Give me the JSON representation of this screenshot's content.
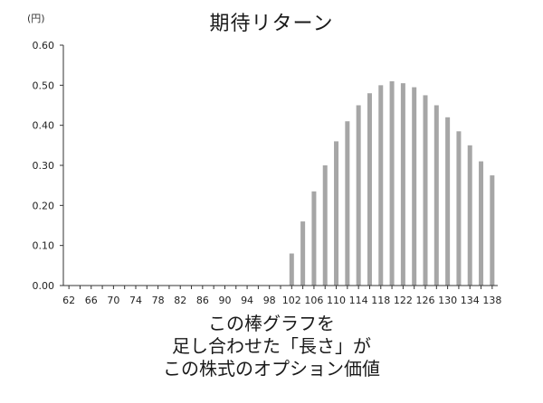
{
  "chart_data": {
    "type": "bar",
    "title": "期待リターン",
    "ylabel": "(円)",
    "xlabel": "",
    "ylim": [
      0,
      0.6
    ],
    "yticks": [
      "0.00",
      "0.10",
      "0.20",
      "0.30",
      "0.40",
      "0.50",
      "0.60"
    ],
    "x_tick_labels": [
      "62",
      "66",
      "70",
      "74",
      "78",
      "82",
      "86",
      "90",
      "94",
      "98",
      "102",
      "106",
      "110",
      "114",
      "118",
      "122",
      "126",
      "130",
      "134",
      "138"
    ],
    "categories": [
      62,
      64,
      66,
      68,
      70,
      72,
      74,
      76,
      78,
      80,
      82,
      84,
      86,
      88,
      90,
      92,
      94,
      96,
      98,
      100,
      102,
      104,
      106,
      108,
      110,
      112,
      114,
      116,
      118,
      120,
      122,
      124,
      126,
      128,
      130,
      132,
      134,
      136,
      138
    ],
    "values": [
      0,
      0,
      0,
      0,
      0,
      0,
      0,
      0,
      0,
      0,
      0,
      0,
      0,
      0,
      0,
      0,
      0,
      0,
      0,
      0,
      0.08,
      0.16,
      0.235,
      0.3,
      0.36,
      0.41,
      0.45,
      0.48,
      0.5,
      0.51,
      0.505,
      0.495,
      0.475,
      0.45,
      0.42,
      0.385,
      0.35,
      0.31,
      0.275
    ],
    "bar_color": "#a6a6a6",
    "grid": false
  },
  "caption": {
    "line1": "この棒グラフを",
    "line2": "足し合わせた「長さ」が",
    "line3": "この株式のオプション価値"
  }
}
